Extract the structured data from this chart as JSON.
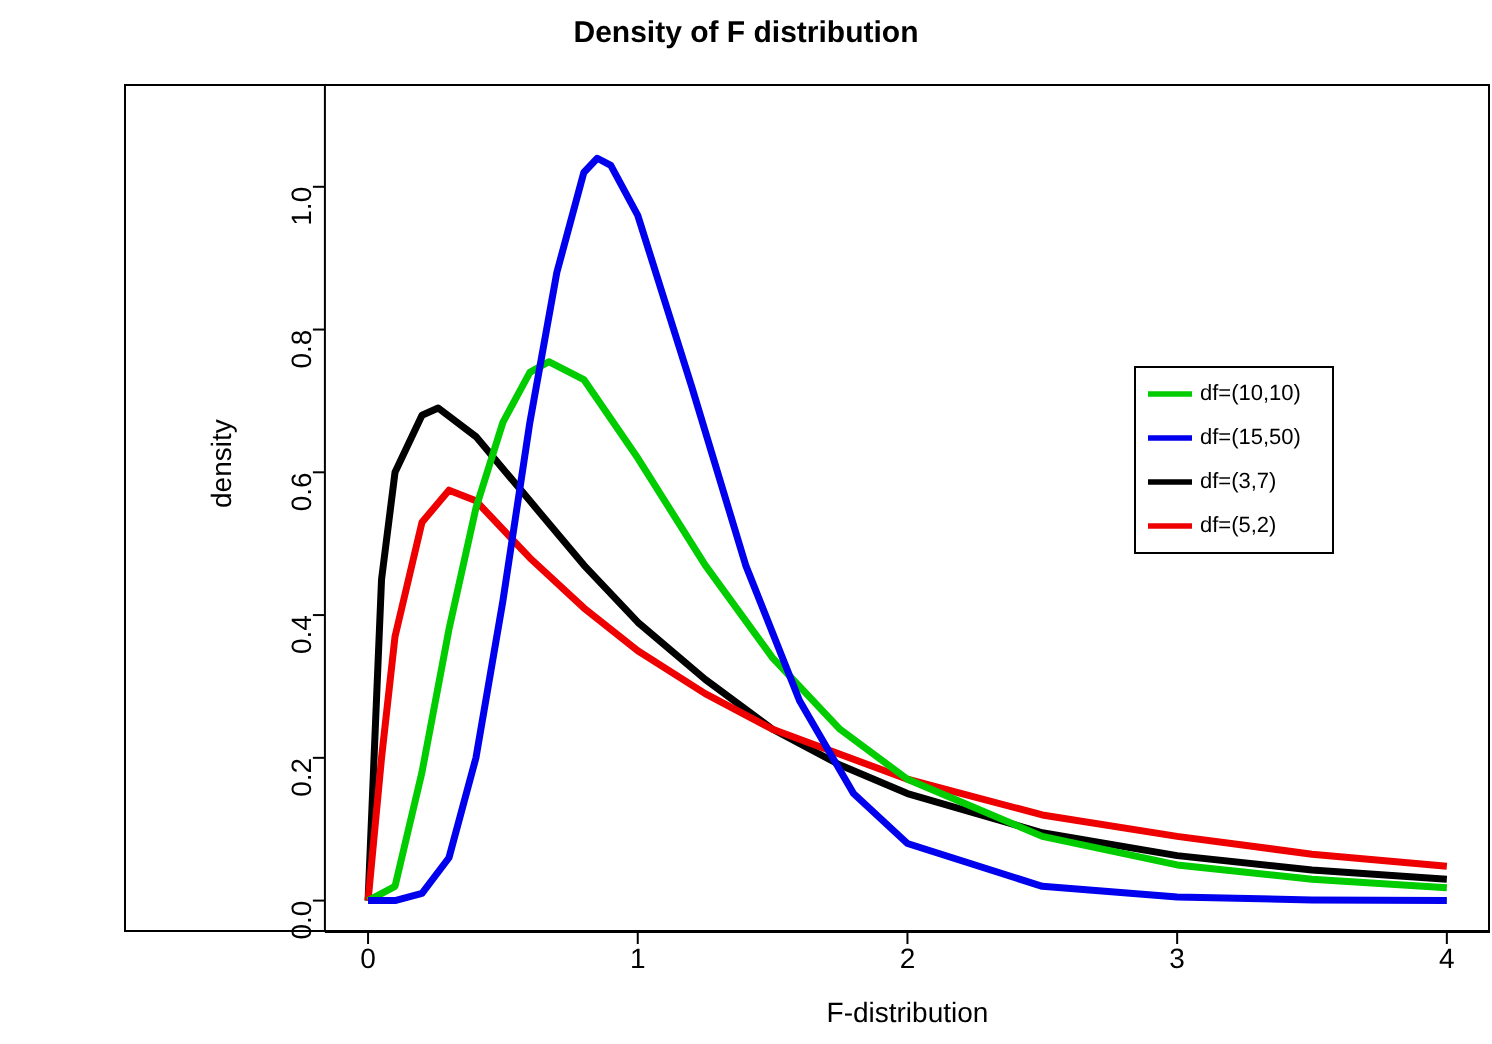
{
  "chart_data": {
    "type": "line",
    "title": "Density of F distribution",
    "xlabel": "F-distribution",
    "ylabel": "density",
    "xlim": [
      -0.16,
      4.16
    ],
    "xticks": [
      0,
      1,
      2,
      3,
      4
    ],
    "ylim": [
      -0.044,
      1.144
    ],
    "yticks": [
      {
        "value": 0,
        "label": "0.0"
      },
      0.2,
      0.4,
      0.6,
      0.8,
      {
        "value": 1,
        "label": "1.0"
      }
    ],
    "grid": false,
    "legend": "right",
    "marker": "none",
    "line_style": "solid",
    "series": [
      {
        "name": "df=(3,7)",
        "color": "#000000",
        "x": [
          0,
          0.05,
          0.1,
          0.2,
          0.26,
          0.4,
          0.6,
          0.8,
          1,
          1.25,
          1.5,
          1.75,
          2,
          2.5,
          3,
          3.5,
          4
        ],
        "values": [
          0,
          0.45,
          0.6,
          0.68,
          0.69,
          0.65,
          0.56,
          0.47,
          0.39,
          0.31,
          0.24,
          0.19,
          0.15,
          0.095,
          0.063,
          0.043,
          0.03
        ]
      },
      {
        "name": "df=(5,2)",
        "color": "#ee0000",
        "x": [
          0,
          0.05,
          0.1,
          0.2,
          0.3,
          0.4,
          0.6,
          0.8,
          1,
          1.25,
          1.5,
          2,
          2.5,
          3,
          3.5,
          4
        ],
        "values": [
          0,
          0.2,
          0.37,
          0.53,
          0.575,
          0.56,
          0.48,
          0.41,
          0.35,
          0.29,
          0.24,
          0.17,
          0.12,
          0.09,
          0.065,
          0.048
        ]
      },
      {
        "name": "df=(10,10)",
        "color": "#00cc00",
        "x": [
          0,
          0.1,
          0.2,
          0.3,
          0.4,
          0.5,
          0.6,
          0.67,
          0.8,
          1,
          1.25,
          1.5,
          1.75,
          2,
          2.5,
          3,
          3.5,
          4
        ],
        "values": [
          0,
          0.02,
          0.18,
          0.38,
          0.55,
          0.67,
          0.74,
          0.755,
          0.73,
          0.62,
          0.47,
          0.34,
          0.24,
          0.17,
          0.09,
          0.05,
          0.03,
          0.018
        ]
      },
      {
        "name": "df=(15,50)",
        "color": "#0000ee",
        "x": [
          0,
          0.1,
          0.2,
          0.3,
          0.4,
          0.5,
          0.6,
          0.7,
          0.8,
          0.85,
          0.9,
          1,
          1.2,
          1.4,
          1.6,
          1.8,
          2,
          2.5,
          3,
          3.5,
          4
        ],
        "values": [
          0,
          0,
          0.01,
          0.06,
          0.2,
          0.42,
          0.67,
          0.88,
          1.02,
          1.04,
          1.03,
          0.96,
          0.72,
          0.47,
          0.28,
          0.15,
          0.08,
          0.02,
          0.005,
          0.001,
          0
        ]
      }
    ]
  }
}
